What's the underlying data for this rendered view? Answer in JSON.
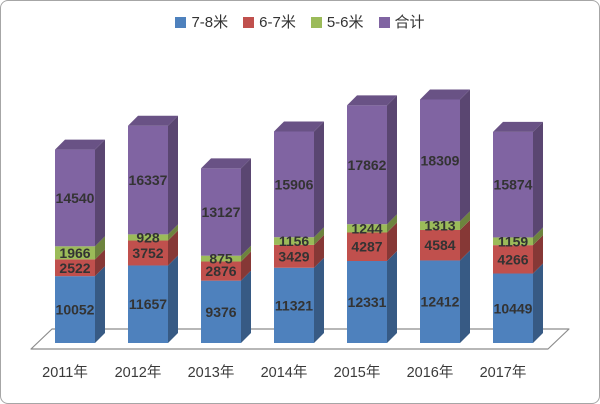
{
  "frame": {
    "background": "#ffffff",
    "border_color": "#a6a6a6"
  },
  "chart_data": {
    "type": "bar",
    "subtype": "3d-stacked-column",
    "title": "",
    "categories": [
      "2011年",
      "2012年",
      "2013年",
      "2014年",
      "2015年",
      "2016年",
      "2017年"
    ],
    "series": [
      {
        "name": "7-8米",
        "color": "#4E81BD",
        "values": [
          10052,
          11657,
          9376,
          11321,
          12331,
          12412,
          10449
        ]
      },
      {
        "name": "6-7米",
        "color": "#C0504D",
        "values": [
          2522,
          3752,
          2876,
          3429,
          4287,
          4584,
          4266
        ]
      },
      {
        "name": "5-6米",
        "color": "#9BBB59",
        "values": [
          1966,
          928,
          875,
          1156,
          1244,
          1313,
          1159
        ]
      },
      {
        "name": "合计",
        "color": "#8064A2",
        "values": [
          14540,
          16337,
          13127,
          15906,
          17862,
          18309,
          15874
        ]
      }
    ],
    "stacked": true,
    "data_labels": true,
    "legend_position": "top",
    "gridlines": false,
    "floor_stroke_color": "#8c8c8c",
    "value_label_color": "#333333",
    "axis_label_color": "#3a3a3a"
  }
}
